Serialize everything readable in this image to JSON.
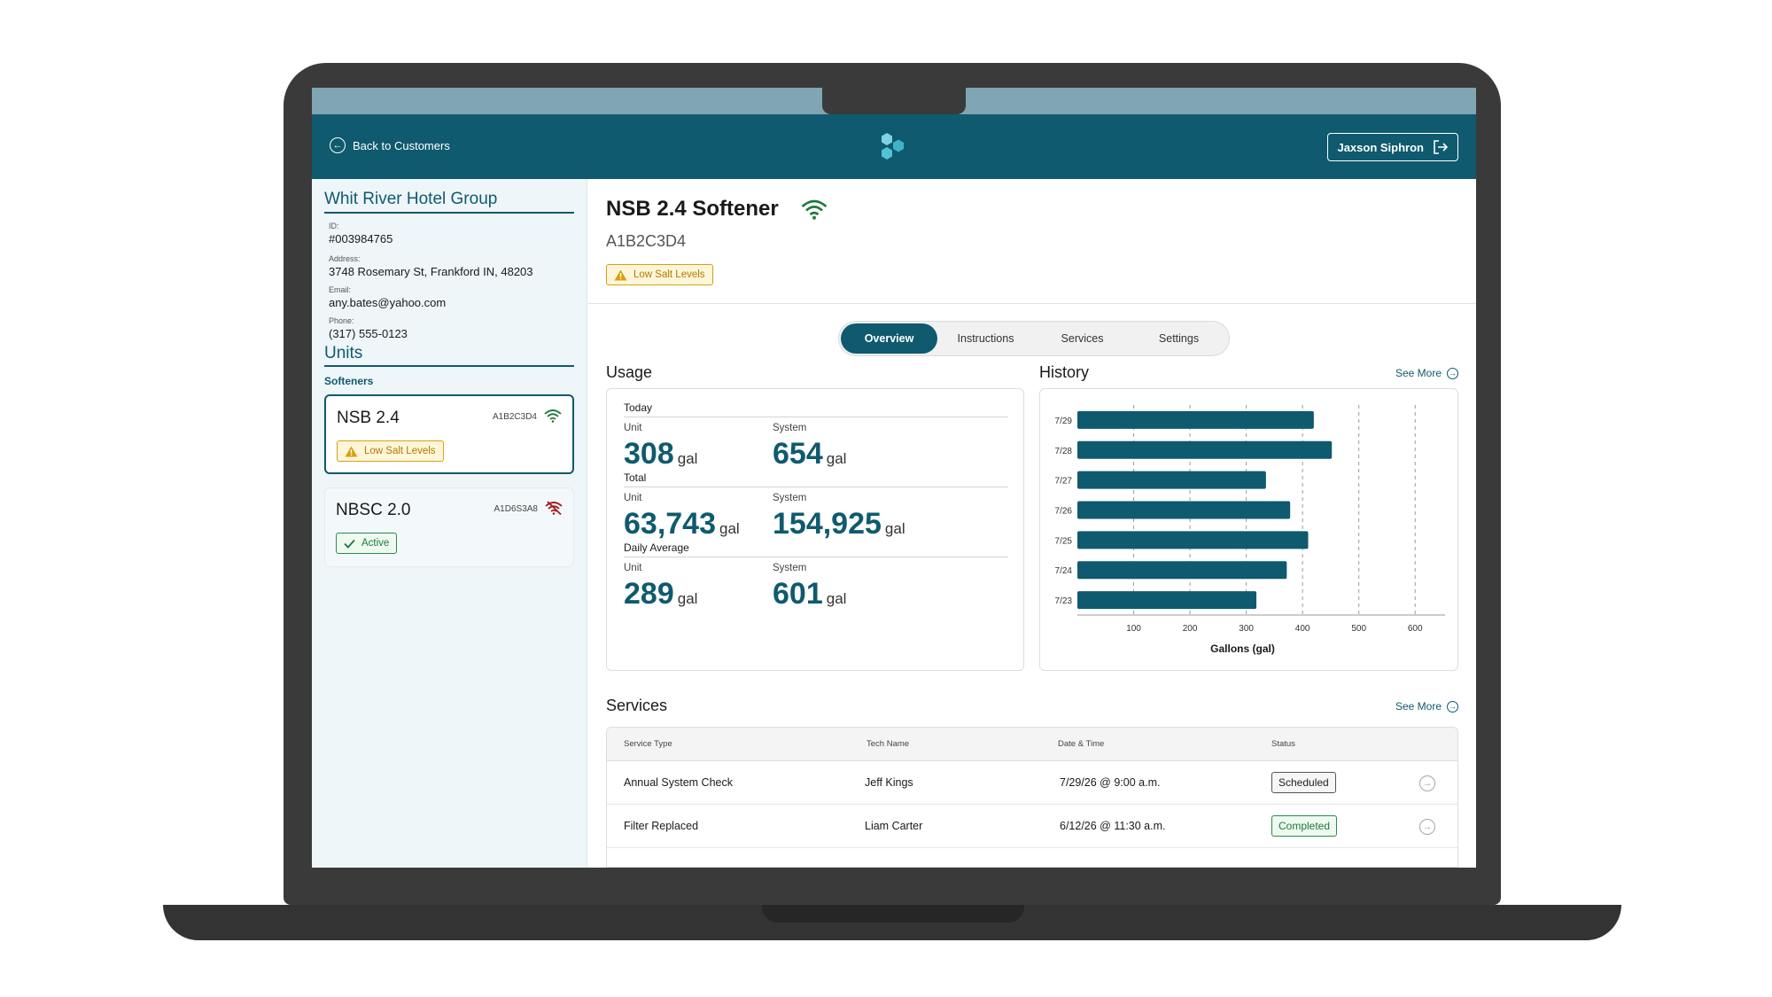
{
  "header": {
    "back_label": "Back to Customers",
    "user_name": "Jaxson Siphron"
  },
  "customer": {
    "name": "Whit River Hotel Group",
    "id_label": "ID:",
    "id_value": "#003984765",
    "address_label": "Address:",
    "address_value": "3748 Rosemary St, Frankford IN, 48203",
    "email_label": "Email:",
    "email_value": "any.bates@yahoo.com",
    "phone_label": "Phone:",
    "phone_value": "(317) 555-0123"
  },
  "units": {
    "title": "Units",
    "group_label": "Softeners",
    "items": [
      {
        "name": "NSB 2.4",
        "code": "A1B2C3D4",
        "status": "Low Salt Levels",
        "connection": "wifi-icon"
      },
      {
        "name": "NBSC 2.0",
        "code": "A1D6S3A8",
        "status": "Active",
        "connection": "wifi-off-icon"
      }
    ]
  },
  "device": {
    "title": "NSB 2.4 Softener",
    "code": "A1B2C3D4",
    "alert": "Low Salt Levels"
  },
  "tabs": [
    {
      "label": "Overview",
      "active": true
    },
    {
      "label": "Instructions",
      "active": false
    },
    {
      "label": "Services",
      "active": false
    },
    {
      "label": "Settings",
      "active": false
    }
  ],
  "usage": {
    "title": "Usage",
    "unit_word": "gal",
    "groups": [
      {
        "label": "Today",
        "unit_label": "Unit",
        "unit_value": "308",
        "system_label": "System",
        "system_value": "654"
      },
      {
        "label": "Total",
        "unit_label": "Unit",
        "unit_value": "63,743",
        "system_label": "System",
        "system_value": "154,925"
      },
      {
        "label": "Daily Average",
        "unit_label": "Unit",
        "unit_value": "289",
        "system_label": "System",
        "system_value": "601"
      }
    ]
  },
  "history": {
    "title": "History",
    "see_more": "See More"
  },
  "chart_data": {
    "type": "bar",
    "orientation": "horizontal",
    "categories": [
      "7/29",
      "7/28",
      "7/27",
      "7/26",
      "7/25",
      "7/24",
      "7/23"
    ],
    "values": [
      420,
      452,
      335,
      378,
      410,
      372,
      318
    ],
    "xlabel": "Gallons (gal)",
    "xticks": [
      100,
      200,
      300,
      400,
      500,
      600
    ],
    "xlim": [
      0,
      650
    ],
    "grid": true,
    "bar_color": "#0f5a6e"
  },
  "services": {
    "title": "Services",
    "see_more": "See More",
    "columns": [
      "Service Type",
      "Tech Name",
      "Date & Time",
      "Status"
    ],
    "rows": [
      {
        "type": "Annual System Check",
        "tech": "Jeff Kings",
        "datetime": "7/29/26 @ 9:00 a.m.",
        "status": "Scheduled"
      },
      {
        "type": "Filter Replaced",
        "tech": "Liam Carter",
        "datetime": "6/12/26 @ 11:30 a.m.",
        "status": "Completed"
      }
    ]
  },
  "colors": {
    "brand": "#0f5a6e",
    "warning": "#d8a012",
    "success": "#2a8a4b",
    "offline": "#a11c1c"
  }
}
